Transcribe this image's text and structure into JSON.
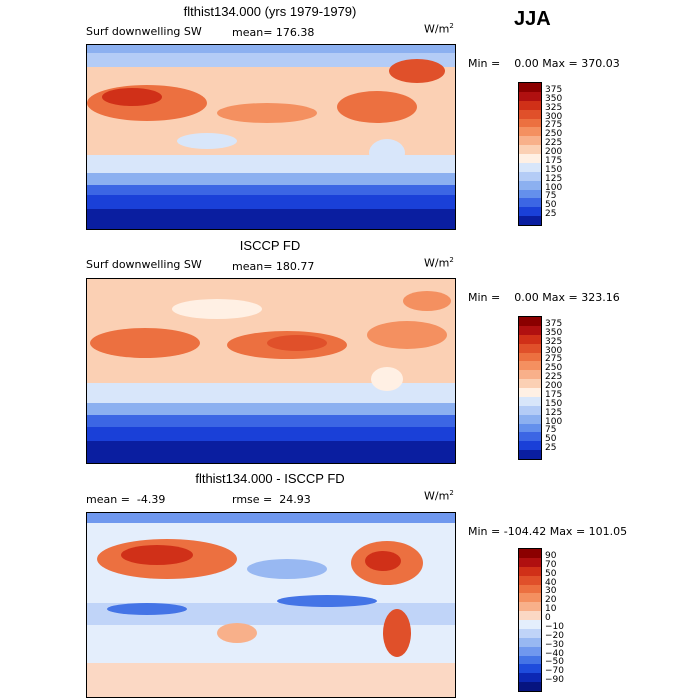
{
  "season": "JJA",
  "units_base": "W/m",
  "units_exp": "2",
  "panels": [
    {
      "title": "flthist134.000 (yrs 1979-1979)",
      "left_label": "Surf downwelling SW",
      "stat_label": "mean=",
      "stat_value": "176.38",
      "min_label": "Min =",
      "min_value": "0.00",
      "max_label": "Max =",
      "max_value": "370.03"
    },
    {
      "title": "ISCCP FD",
      "left_label": "Surf downwelling SW",
      "stat_label": "mean=",
      "stat_value": "180.77",
      "min_label": "Min =",
      "min_value": "0.00",
      "max_label": "Max =",
      "max_value": "323.16"
    },
    {
      "title": "flthist134.000 - ISCCP FD",
      "left_label": "mean =",
      "left_value": "-4.39",
      "stat_label": "rmse =",
      "stat_value": "24.93",
      "min_label": "Min =",
      "min_value": "-104.42",
      "max_label": "Max =",
      "max_value": "101.05"
    }
  ],
  "colorbar_abs": {
    "labels": [
      "375",
      "350",
      "325",
      "300",
      "275",
      "250",
      "225",
      "200",
      "175",
      "150",
      "125",
      "100",
      "75",
      "50",
      "25"
    ],
    "colors": [
      "#8b0000",
      "#b01010",
      "#d03018",
      "#e0502a",
      "#ec7040",
      "#f49060",
      "#f8b08a",
      "#fbd0b4",
      "#fff0e4",
      "#d8e6fa",
      "#b4ccf6",
      "#8cb0f0",
      "#6490ec",
      "#3c66e4",
      "#1a40d8",
      "#0a1ea0"
    ]
  },
  "colorbar_diff": {
    "labels": [
      "90",
      "70",
      "50",
      "40",
      "30",
      "20",
      "10",
      "0",
      "−10",
      "−20",
      "−30",
      "−40",
      "−50",
      "−70",
      "−90"
    ],
    "colors": [
      "#8b0000",
      "#b01010",
      "#d03018",
      "#e0502a",
      "#ec7040",
      "#f49060",
      "#f8b08a",
      "#fbd8c4",
      "#e4eefc",
      "#c0d4f8",
      "#98b8f2",
      "#7098ee",
      "#4474e6",
      "#1e4cdc",
      "#0c28b4",
      "#061480"
    ]
  }
}
